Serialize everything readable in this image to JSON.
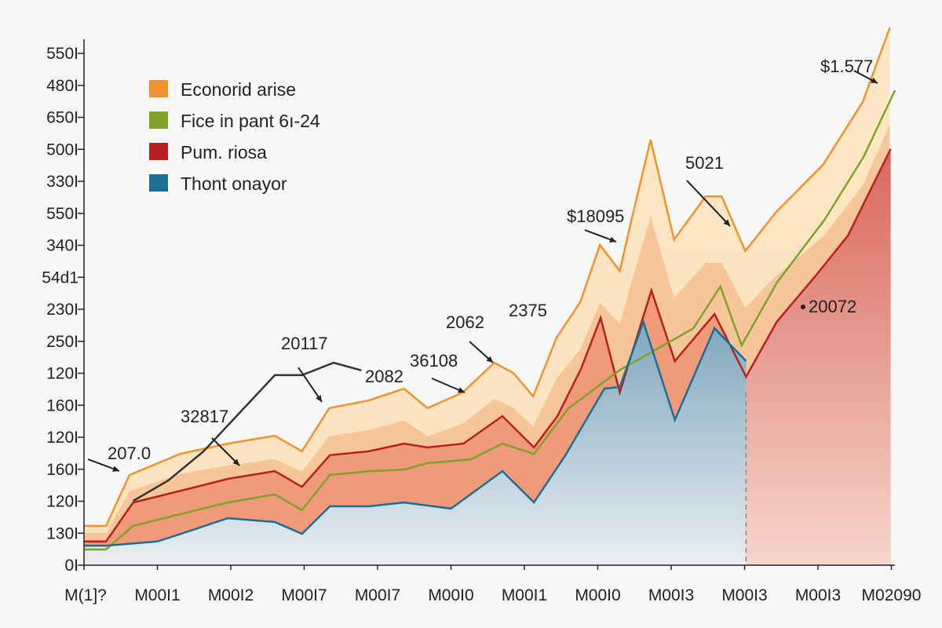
{
  "chart_data": {
    "type": "area",
    "title": "",
    "xlabel": "",
    "ylabel": "",
    "y_tick_labels": [
      "0I",
      "130I",
      "120I",
      "160I",
      "120I",
      "160I",
      "120I",
      "250I",
      "230I",
      "54d1",
      "340I",
      "550I",
      "330I",
      "500I",
      "650I",
      "480I",
      "550I"
    ],
    "x_tick_labels": [
      "M(1]?",
      "M00I1",
      "M00I2",
      "M00I7",
      "M00I7",
      "M00I0",
      "M00I1",
      "M00I0",
      "M00I3",
      "M00I3",
      "M00I3",
      "M02090"
    ],
    "xlim": [
      0,
      11
    ],
    "ylim": [
      0,
      17
    ],
    "grid": false,
    "legend_position": "top-left",
    "series": [
      {
        "name": "Econorid arise",
        "color": "#f0922e",
        "points": [
          [
            0,
            1.23
          ],
          [
            0.3,
            1.23
          ],
          [
            0.62,
            2.82
          ],
          [
            1.31,
            3.48
          ],
          [
            1.96,
            3.8
          ],
          [
            2.6,
            4.05
          ],
          [
            2.97,
            3.56
          ],
          [
            3.34,
            4.91
          ],
          [
            3.88,
            5.15
          ],
          [
            4.36,
            5.52
          ],
          [
            4.68,
            4.91
          ],
          [
            5.16,
            5.4
          ],
          [
            5.59,
            6.33
          ],
          [
            5.85,
            6.01
          ],
          [
            6.12,
            5.28
          ],
          [
            6.44,
            7.12
          ],
          [
            6.76,
            8.22
          ],
          [
            7.03,
            10.01
          ],
          [
            7.3,
            9.2
          ],
          [
            7.46,
            10.8
          ],
          [
            7.72,
            13.3
          ],
          [
            8.04,
            10.18
          ],
          [
            8.47,
            11.53
          ],
          [
            8.69,
            11.53
          ],
          [
            9.01,
            9.82
          ],
          [
            9.43,
            11.04
          ],
          [
            10.07,
            12.52
          ],
          [
            10.61,
            14.48
          ],
          [
            10.98,
            16.81
          ]
        ]
      },
      {
        "name": "Fice in pant 6ı-24",
        "color": "#7fa32a",
        "points": [
          [
            0,
            0.49
          ],
          [
            0.3,
            0.49
          ],
          [
            0.67,
            1.23
          ],
          [
            1.32,
            1.6
          ],
          [
            1.96,
            1.96
          ],
          [
            2.6,
            2.21
          ],
          [
            2.97,
            1.72
          ],
          [
            3.35,
            2.82
          ],
          [
            3.88,
            2.94
          ],
          [
            4.36,
            2.99
          ],
          [
            4.68,
            3.19
          ],
          [
            5.27,
            3.31
          ],
          [
            5.7,
            3.8
          ],
          [
            6.13,
            3.48
          ],
          [
            6.6,
            4.9
          ],
          [
            7.3,
            6.1
          ],
          [
            8.3,
            7.4
          ],
          [
            8.67,
            8.71
          ],
          [
            8.96,
            6.87
          ],
          [
            9.44,
            8.83
          ],
          [
            10.09,
            10.8
          ],
          [
            10.62,
            12.76
          ],
          [
            11.05,
            14.85
          ]
        ]
      },
      {
        "name": "Pum. riosa",
        "color": "#b8201f",
        "points": [
          [
            0,
            0.74
          ],
          [
            0.3,
            0.74
          ],
          [
            0.67,
            1.96
          ],
          [
            1.32,
            2.33
          ],
          [
            1.96,
            2.7
          ],
          [
            2.6,
            2.94
          ],
          [
            2.97,
            2.45
          ],
          [
            3.35,
            3.44
          ],
          [
            3.88,
            3.56
          ],
          [
            4.36,
            3.8
          ],
          [
            4.68,
            3.68
          ],
          [
            5.17,
            3.8
          ],
          [
            5.7,
            4.66
          ],
          [
            6.13,
            3.68
          ],
          [
            6.45,
            4.66
          ],
          [
            6.77,
            6.13
          ],
          [
            7.04,
            7.73
          ],
          [
            7.3,
            5.4
          ],
          [
            7.73,
            8.59
          ],
          [
            8.05,
            6.38
          ],
          [
            8.59,
            7.85
          ],
          [
            9.02,
            5.89
          ],
          [
            9.44,
            7.61
          ],
          [
            9.98,
            9.08
          ],
          [
            10.41,
            10.31
          ],
          [
            10.99,
            13.01
          ]
        ]
      },
      {
        "name": "Thont onayor",
        "color": "#1b6f95",
        "points": [
          [
            0,
            0.61
          ],
          [
            0.3,
            0.61
          ],
          [
            1.0,
            0.74
          ],
          [
            1.32,
            0.98
          ],
          [
            1.96,
            1.47
          ],
          [
            2.6,
            1.35
          ],
          [
            2.97,
            0.98
          ],
          [
            3.35,
            1.84
          ],
          [
            3.88,
            1.84
          ],
          [
            4.36,
            1.96
          ],
          [
            5.0,
            1.77
          ],
          [
            5.7,
            2.94
          ],
          [
            6.13,
            1.96
          ],
          [
            6.56,
            3.44
          ],
          [
            7.09,
            5.52
          ],
          [
            7.3,
            5.57
          ],
          [
            7.62,
            7.61
          ],
          [
            8.05,
            4.54
          ],
          [
            8.59,
            7.41
          ],
          [
            9.02,
            6.38
          ]
        ]
      }
    ],
    "trend_line": [
      [
        0.67,
        2.01
      ],
      [
        1.15,
        2.65
      ],
      [
        1.63,
        3.56
      ],
      [
        2.6,
        5.94
      ],
      [
        2.97,
        5.94
      ],
      [
        3.4,
        6.33
      ],
      [
        3.78,
        6.09
      ]
    ],
    "annotations": [
      "$1.577",
      "5021",
      "$18095",
      "2375",
      "2062",
      "36108",
      "2082",
      "20117",
      "32817",
      "207.0",
      "20072"
    ]
  }
}
